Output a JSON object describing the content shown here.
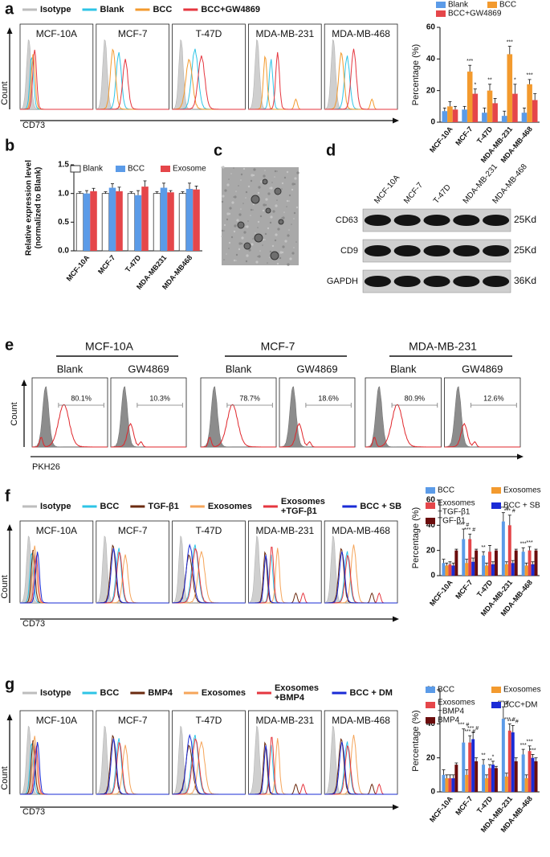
{
  "panel_labels": [
    "a",
    "b",
    "c",
    "d",
    "e",
    "f",
    "g"
  ],
  "flow_a": {
    "legend": [
      {
        "name": "Isotype",
        "color": "#bdbdbd"
      },
      {
        "name": "Blank",
        "color": "#2ec4e6"
      },
      {
        "name": "BCC",
        "color": "#f39a2e"
      },
      {
        "name": "BCC+GW4869",
        "color": "#e5363f"
      }
    ],
    "panels": [
      "MCF-10A",
      "MCF-7",
      "T-47D",
      "MDA-MB-231",
      "MDA-MB-468"
    ],
    "ylabel": "Count",
    "xlabel": "CD73"
  },
  "western_blot": {
    "lanes": [
      "MCF-10A",
      "MCF-7",
      "T-47D",
      "MDA-MB-231",
      "MDA-MB-468"
    ],
    "rows": [
      {
        "protein": "CD63",
        "size": "25Kd"
      },
      {
        "protein": "CD9",
        "size": "25Kd"
      },
      {
        "protein": "GAPDH",
        "size": "36Kd"
      }
    ]
  },
  "flow_e": {
    "groups": [
      {
        "title": "MCF-10A",
        "panels": [
          {
            "label": "Blank",
            "percent": "80.1%"
          },
          {
            "label": "GW4869",
            "percent": "10.3%"
          }
        ]
      },
      {
        "title": "MCF-7",
        "panels": [
          {
            "label": "Blank",
            "percent": "78.7%"
          },
          {
            "label": "GW4869",
            "percent": "18.6%"
          }
        ]
      },
      {
        "title": "MDA-MB-231",
        "panels": [
          {
            "label": "Blank",
            "percent": "80.9%"
          },
          {
            "label": "GW4869",
            "percent": "12.6%"
          }
        ]
      }
    ],
    "ylabel": "Count",
    "xlabel": "PKH26"
  },
  "flow_f": {
    "legend": [
      {
        "name": "Isotype",
        "color": "#bdbdbd"
      },
      {
        "name": "BCC",
        "color": "#2ec4e6"
      },
      {
        "name": "TGF-β1",
        "color": "#6b2a0f"
      },
      {
        "name": "Exosomes",
        "color": "#f5a55a"
      },
      {
        "name": "Exosomes +TGF-β1",
        "color": "#e5363f"
      },
      {
        "name": "BCC + SB",
        "color": "#1a2bd6"
      }
    ],
    "panels": [
      "MCF-10A",
      "MCF-7",
      "T-47D",
      "MDA-MB-231",
      "MDA-MB-468"
    ],
    "ylabel": "Count",
    "xlabel": "CD73"
  },
  "flow_g": {
    "legend": [
      {
        "name": "Isotype",
        "color": "#bdbdbd"
      },
      {
        "name": "BCC",
        "color": "#2ec4e6"
      },
      {
        "name": "BMP4",
        "color": "#6b2a0f"
      },
      {
        "name": "Exosomes",
        "color": "#f5a55a"
      },
      {
        "name": "Exosomes +BMP4",
        "color": "#e5363f"
      },
      {
        "name": "BCC + DM",
        "color": "#1a2bd6"
      }
    ],
    "panels": [
      "MCF-10A",
      "MCF-7",
      "T-47D",
      "MDA-MB-231",
      "MDA-MB-468"
    ],
    "ylabel": "Count",
    "xlabel": "CD73"
  },
  "chart_data": [
    {
      "type": "bar",
      "ylabel": "Percentage (%)",
      "categories": [
        "MCF-10A",
        "MCF-7",
        "T-47D",
        "MDA-MB-231",
        "MDA-MB-468"
      ],
      "ylim": [
        0,
        60
      ],
      "yticks": [
        0,
        20,
        40,
        60
      ],
      "series": [
        {
          "name": "Blank",
          "color": "#5b9be8",
          "values": [
            7,
            8,
            6,
            4,
            6
          ],
          "errors": [
            2,
            2,
            3,
            3,
            3
          ],
          "significance": [
            null,
            null,
            null,
            null,
            null
          ]
        },
        {
          "name": "BCC",
          "color": "#f39a2e",
          "values": [
            10,
            32,
            20,
            43,
            24
          ],
          "errors": [
            3,
            4,
            4,
            5,
            3
          ],
          "significance": [
            null,
            "***",
            "**",
            "***",
            "***"
          ]
        },
        {
          "name": "BCC+GW4869",
          "color": "#e5464a",
          "values": [
            8,
            18,
            12,
            18,
            14
          ],
          "errors": [
            2,
            3,
            3,
            6,
            4
          ],
          "significance": [
            null,
            "*",
            null,
            "*",
            null
          ]
        }
      ]
    },
    {
      "type": "bar",
      "ylabel": [
        "Relative expression level",
        "(normalized to Blank)"
      ],
      "categories": [
        "MCF-10A",
        "MCF-7",
        "T-47D",
        "MDA-MB231",
        "MDA-MB468"
      ],
      "ylim": [
        0,
        1.5
      ],
      "yticks": [
        {
          "value": 0,
          "label": "0.0"
        },
        0.5,
        {
          "value": 1,
          "label": "1.0"
        },
        1.5
      ],
      "series": [
        {
          "name": "Blank",
          "color": "#ffffff",
          "values": [
            1,
            1,
            1,
            1,
            1
          ],
          "errors": [
            0.03,
            0.03,
            0.03,
            0.03,
            0.03
          ]
        },
        {
          "name": "BCC",
          "color": "#5b9be8",
          "values": [
            1.0,
            1.1,
            0.97,
            1.1,
            1.08
          ],
          "errors": [
            0.05,
            0.07,
            0.08,
            0.08,
            0.1
          ]
        },
        {
          "name": "Exosome",
          "color": "#e5464a",
          "values": [
            1.04,
            1.04,
            1.12,
            1.02,
            1.07
          ],
          "errors": [
            0.05,
            0.07,
            0.1,
            0.03,
            0.06
          ]
        }
      ]
    },
    {
      "type": "bar",
      "ylabel": "Percentage (%)",
      "categories": [
        "MCF-10A",
        "MCF-7",
        "T-47D",
        "MDA-MB-231",
        "MDA-MB-468"
      ],
      "ylim": [
        0,
        60
      ],
      "yticks": [
        0,
        20,
        40,
        60
      ],
      "series": [
        {
          "name": "BCC",
          "color": "#5b9be8",
          "values": [
            10,
            29,
            16,
            43,
            19
          ],
          "errors": [
            3,
            8,
            3,
            7,
            3
          ],
          "significance": [
            null,
            "*** #",
            "**",
            "*** #",
            "***"
          ]
        },
        {
          "name": "Exosomes",
          "color": "#f39a2e",
          "values": [
            8,
            10,
            8,
            9,
            8
          ],
          "errors": [
            2,
            3,
            2,
            2,
            2
          ],
          "significance": [
            null,
            null,
            null,
            null,
            null
          ]
        },
        {
          "name": "Exosomes +TGF-β1",
          "color": "#e5464a",
          "values": [
            9,
            29,
            19,
            40,
            20
          ],
          "errors": [
            2,
            4,
            5,
            8,
            3
          ],
          "significance": [
            null,
            "*** #",
            null,
            "*** #",
            "***"
          ]
        },
        {
          "name": "BCC + SB",
          "color": "#1a2bd6",
          "values": [
            8,
            11,
            9,
            10,
            9
          ],
          "errors": [
            2,
            3,
            2,
            2,
            2
          ],
          "significance": [
            null,
            null,
            null,
            null,
            null
          ]
        },
        {
          "name": "TGF-β1",
          "color": "#6b0d0d",
          "values": [
            20,
            20,
            20,
            20,
            20
          ],
          "errors": [
            1,
            1,
            1,
            1,
            1
          ],
          "significance": [
            null,
            null,
            null,
            null,
            null
          ]
        }
      ]
    },
    {
      "type": "bar",
      "ylabel": "Percentage (%)",
      "categories": [
        "MCF-10A",
        "MCF-7",
        "T-47D",
        "MDA-MB-231",
        "MDA-MB-468"
      ],
      "ylim": [
        0,
        60
      ],
      "yticks": [
        0,
        20,
        40,
        60
      ],
      "series": [
        {
          "name": "BCC",
          "color": "#5b9be8",
          "values": [
            10,
            29,
            16,
            43,
            22
          ],
          "errors": [
            3,
            8,
            3,
            7,
            3
          ],
          "significance": [
            null,
            "*** #",
            "**",
            "*** #",
            "***"
          ]
        },
        {
          "name": "Exosomes",
          "color": "#f39a2e",
          "values": [
            8,
            10,
            8,
            9,
            8
          ],
          "errors": [
            2,
            3,
            2,
            2,
            2
          ],
          "significance": [
            null,
            null,
            null,
            null,
            null
          ]
        },
        {
          "name": "Exosomes +BMP4",
          "color": "#e5464a",
          "values": [
            8,
            29,
            14,
            36,
            24
          ],
          "errors": [
            2,
            4,
            2,
            4,
            3
          ],
          "significance": [
            null,
            "*** #",
            "**",
            "*** #",
            "***"
          ]
        },
        {
          "name": "BCC+DM",
          "color": "#1a2bd6",
          "values": [
            8,
            31,
            16,
            35,
            20
          ],
          "errors": [
            2,
            4,
            2,
            4,
            2
          ],
          "significance": [
            null,
            "*** #",
            "*",
            "*** #",
            "***"
          ]
        },
        {
          "name": "BMP4",
          "color": "#6b0d0d",
          "values": [
            16,
            18,
            14,
            18,
            18
          ],
          "errors": [
            1,
            2,
            1,
            2,
            2
          ],
          "significance": [
            null,
            null,
            null,
            null,
            null
          ]
        }
      ]
    }
  ]
}
